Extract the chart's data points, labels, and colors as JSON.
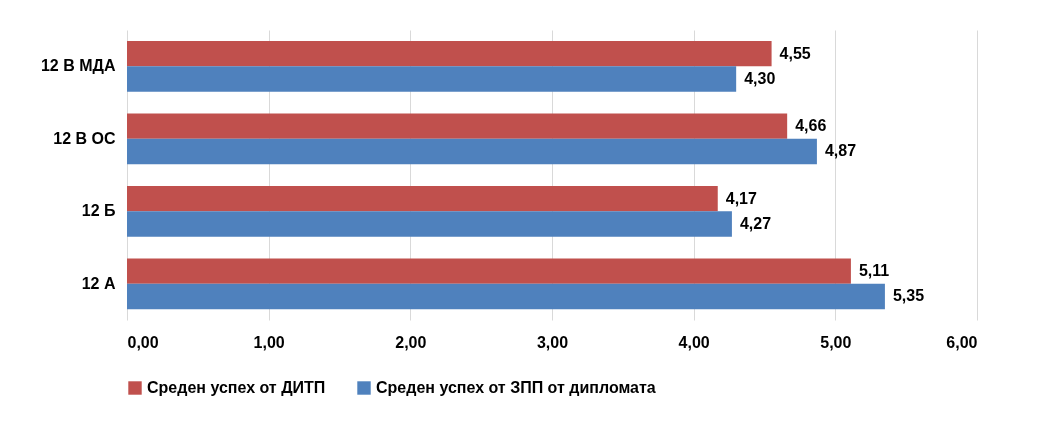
{
  "chart_data": {
    "type": "bar",
    "orientation": "horizontal",
    "categories": [
      "12 В МДА",
      "12 В ОС",
      "12 Б",
      "12 А"
    ],
    "series": [
      {
        "name": "Среден успех от ДИТП",
        "color": "#c0504d",
        "values": [
          4.55,
          4.66,
          4.17,
          5.11
        ],
        "value_labels": [
          "4,55",
          "4,66",
          "4,17",
          "5,11"
        ]
      },
      {
        "name": "Среден успех от ЗПП от дипломата",
        "color": "#4f81bd",
        "values": [
          4.3,
          4.87,
          4.27,
          5.35
        ],
        "value_labels": [
          "4,30",
          "4,87",
          "4,27",
          "5,35"
        ]
      }
    ],
    "xlim": [
      0,
      6
    ],
    "xticks": [
      {
        "value": 0,
        "label": "0,00"
      },
      {
        "value": 1,
        "label": "1,00"
      },
      {
        "value": 2,
        "label": "2,00"
      },
      {
        "value": 3,
        "label": "3,00"
      },
      {
        "value": 4,
        "label": "4,00"
      },
      {
        "value": 5,
        "label": "5,00"
      },
      {
        "value": 6,
        "label": "6,00"
      }
    ],
    "grid": "x",
    "legend": "bottom"
  }
}
